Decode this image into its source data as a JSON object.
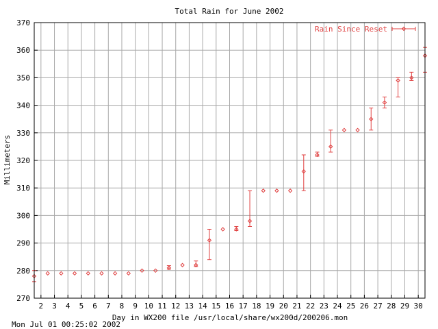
{
  "chart_data": {
    "type": "scatter",
    "title": "Total Rain for June 2002",
    "xlabel": "Day in WX200 file /usr/local/share/wx200d/200206.mon",
    "ylabel": "Millimeters",
    "xlim": [
      1.5,
      30.5
    ],
    "ylim": [
      270,
      370
    ],
    "xticks": [
      2,
      3,
      4,
      5,
      6,
      7,
      8,
      9,
      10,
      11,
      12,
      13,
      14,
      15,
      16,
      17,
      18,
      19,
      20,
      21,
      22,
      23,
      24,
      25,
      26,
      27,
      28,
      29,
      30
    ],
    "yticks": [
      270,
      280,
      290,
      300,
      310,
      320,
      330,
      340,
      350,
      360,
      370
    ],
    "grid": true,
    "legend": {
      "position": "top-right",
      "entries": [
        "Rain Since Reset"
      ]
    },
    "series": [
      {
        "name": "Rain Since Reset",
        "color": "#e04040",
        "style": "errorbars",
        "points": [
          {
            "x": 1.5,
            "y": 278,
            "low": 276,
            "high": 280
          },
          {
            "x": 2.5,
            "y": 279,
            "low": 279,
            "high": 279
          },
          {
            "x": 3.5,
            "y": 279,
            "low": 279,
            "high": 279
          },
          {
            "x": 4.5,
            "y": 279,
            "low": 279,
            "high": 279
          },
          {
            "x": 5.5,
            "y": 279,
            "low": 279,
            "high": 279
          },
          {
            "x": 6.5,
            "y": 279,
            "low": 279,
            "high": 279
          },
          {
            "x": 7.5,
            "y": 279,
            "low": 279,
            "high": 279
          },
          {
            "x": 8.5,
            "y": 279,
            "low": 279,
            "high": 279
          },
          {
            "x": 9.5,
            "y": 280,
            "low": 280,
            "high": 280
          },
          {
            "x": 10.5,
            "y": 280,
            "low": 280,
            "high": 280
          },
          {
            "x": 11.5,
            "y": 281,
            "low": 280.5,
            "high": 281.8
          },
          {
            "x": 12.5,
            "y": 282,
            "low": 282,
            "high": 282
          },
          {
            "x": 13.5,
            "y": 282,
            "low": 281.5,
            "high": 283.5
          },
          {
            "x": 14.5,
            "y": 291,
            "low": 284,
            "high": 295
          },
          {
            "x": 15.5,
            "y": 295,
            "low": 295,
            "high": 295
          },
          {
            "x": 16.5,
            "y": 295,
            "low": 294.5,
            "high": 296
          },
          {
            "x": 17.5,
            "y": 298,
            "low": 296,
            "high": 309
          },
          {
            "x": 18.5,
            "y": 309,
            "low": 309,
            "high": 309
          },
          {
            "x": 19.5,
            "y": 309,
            "low": 309,
            "high": 309
          },
          {
            "x": 20.5,
            "y": 309,
            "low": 309,
            "high": 309
          },
          {
            "x": 21.5,
            "y": 316,
            "low": 309,
            "high": 322
          },
          {
            "x": 22.5,
            "y": 322,
            "low": 321.5,
            "high": 323
          },
          {
            "x": 23.5,
            "y": 325,
            "low": 323,
            "high": 331
          },
          {
            "x": 24.5,
            "y": 331,
            "low": 331,
            "high": 331
          },
          {
            "x": 25.5,
            "y": 331,
            "low": 331,
            "high": 331
          },
          {
            "x": 26.5,
            "y": 335,
            "low": 331,
            "high": 339
          },
          {
            "x": 27.5,
            "y": 341,
            "low": 339,
            "high": 343
          },
          {
            "x": 28.5,
            "y": 349,
            "low": 343,
            "high": 350
          },
          {
            "x": 29.5,
            "y": 350,
            "low": 349,
            "high": 352
          },
          {
            "x": 30.5,
            "y": 358,
            "low": 352,
            "high": 361
          }
        ]
      }
    ],
    "footer": "Mon Jul 01 00:25:02 2002"
  }
}
